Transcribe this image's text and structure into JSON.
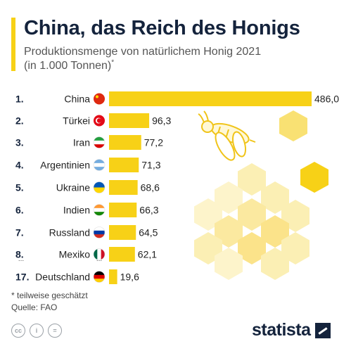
{
  "header": {
    "title": "China, das Reich des Honigs",
    "subtitle": "Produktionsmenge von natürlichem Honig 2021",
    "unit": "(in 1.000 Tonnen)",
    "unit_marker": "*"
  },
  "chart_data": {
    "type": "bar",
    "orientation": "horizontal",
    "title": "China, das Reich des Honigs",
    "subtitle": "Produktionsmenge von natürlichem Honig 2021 (in 1.000 Tonnen)*",
    "ranks": [
      "1.",
      "2.",
      "3.",
      "4.",
      "5.",
      "6.",
      "7.",
      "8.",
      "17."
    ],
    "categories": [
      "China",
      "Türkei",
      "Iran",
      "Argentinien",
      "Ukraine",
      "Indien",
      "Russland",
      "Mexiko",
      "Deutschland"
    ],
    "values": [
      486.0,
      96.3,
      77.2,
      71.3,
      68.6,
      66.3,
      64.5,
      62.1,
      19.6
    ],
    "value_labels": [
      "486,0",
      "96,3",
      "77,2",
      "71,3",
      "68,6",
      "66,3",
      "64,5",
      "62,1",
      "19,6"
    ],
    "flags": [
      "china-flag",
      "turkey-flag",
      "iran-flag",
      "argentina-flag",
      "ukraine-flag",
      "india-flag",
      "russia-flag",
      "mexico-flag",
      "germany-flag"
    ],
    "gap_marker": "...",
    "xlim": [
      0,
      486
    ],
    "bar_color": "#f7d117",
    "grid": false,
    "legend": "none"
  },
  "footer": {
    "note": "* teilweise geschätzt",
    "source": "Quelle: FAO",
    "license_icons": [
      "cc-icon",
      "person-icon",
      "equals-icon"
    ],
    "license_labels": [
      "cc",
      "i",
      "="
    ],
    "logo": "statista"
  },
  "colors": {
    "accent": "#f7d117",
    "title": "#14233c",
    "honeycomb": "#fbefb4"
  }
}
